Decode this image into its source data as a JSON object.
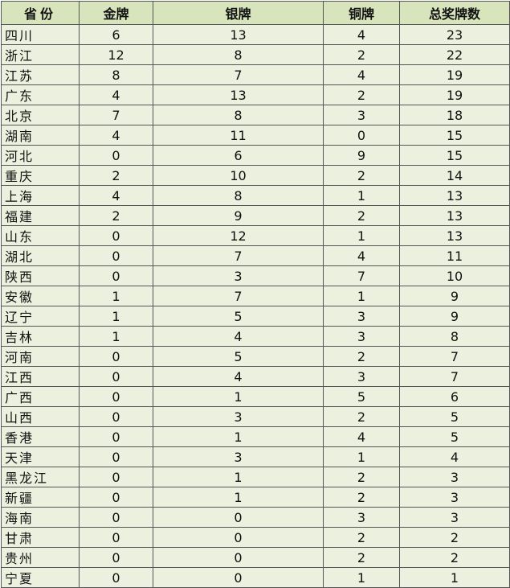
{
  "table": {
    "header": [
      "省份",
      "金牌",
      "银牌",
      "铜牌",
      "总奖牌数"
    ],
    "rows": [
      [
        "四川",
        6,
        13,
        4,
        23
      ],
      [
        "浙江",
        12,
        8,
        2,
        22
      ],
      [
        "江苏",
        8,
        7,
        4,
        19
      ],
      [
        "广东",
        4,
        13,
        2,
        19
      ],
      [
        "北京",
        7,
        8,
        3,
        18
      ],
      [
        "湖南",
        4,
        11,
        0,
        15
      ],
      [
        "河北",
        0,
        6,
        9,
        15
      ],
      [
        "重庆",
        2,
        10,
        2,
        14
      ],
      [
        "上海",
        4,
        8,
        1,
        13
      ],
      [
        "福建",
        2,
        9,
        2,
        13
      ],
      [
        "山东",
        0,
        12,
        1,
        13
      ],
      [
        "湖北",
        0,
        7,
        4,
        11
      ],
      [
        "陕西",
        0,
        3,
        7,
        10
      ],
      [
        "安徽",
        1,
        7,
        1,
        9
      ],
      [
        "辽宁",
        1,
        5,
        3,
        9
      ],
      [
        "吉林",
        1,
        4,
        3,
        8
      ],
      [
        "河南",
        0,
        5,
        2,
        7
      ],
      [
        "江西",
        0,
        4,
        3,
        7
      ],
      [
        "广西",
        0,
        1,
        5,
        6
      ],
      [
        "山西",
        0,
        3,
        2,
        5
      ],
      [
        "香港",
        0,
        1,
        4,
        5
      ],
      [
        "天津",
        0,
        3,
        1,
        4
      ],
      [
        "黑龙江",
        0,
        1,
        2,
        3
      ],
      [
        "新疆",
        0,
        1,
        2,
        3
      ],
      [
        "海南",
        0,
        0,
        3,
        3
      ],
      [
        "甘肃",
        0,
        0,
        2,
        2
      ],
      [
        "贵州",
        0,
        0,
        2,
        2
      ],
      [
        "宁夏",
        0,
        0,
        1,
        1
      ]
    ]
  }
}
